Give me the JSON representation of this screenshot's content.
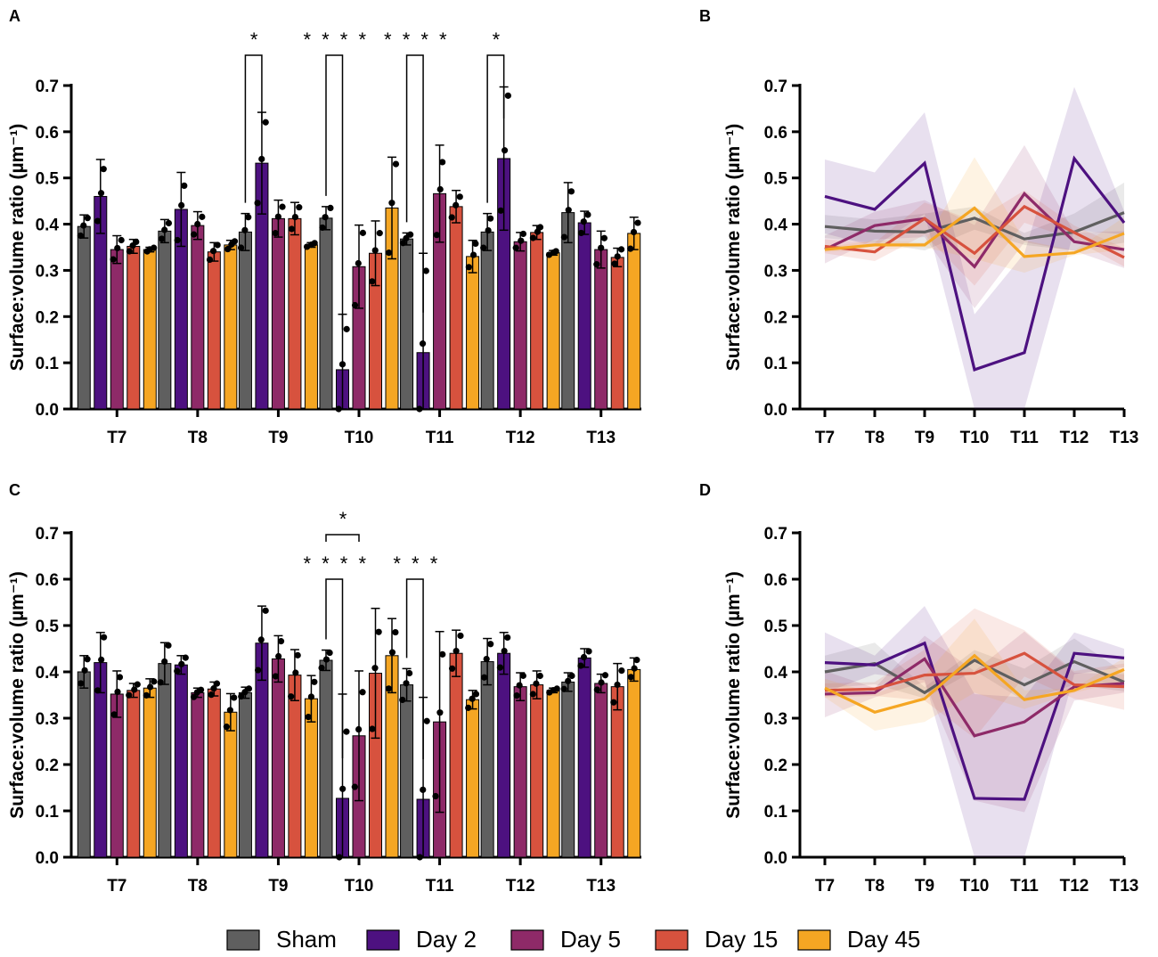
{
  "colors": {
    "Sham": "#5f5f5f",
    "Day 2": "#4d1180",
    "Day 5": "#8e2a68",
    "Day 15": "#d7523e",
    "Day 45": "#f5a623"
  },
  "legend": [
    "Sham",
    "Day 2",
    "Day 5",
    "Day 15",
    "Day 45"
  ],
  "chart_data": [
    {
      "panel": "A",
      "type": "bar",
      "ylabel": "Surface:volume ratio (µm⁻¹)",
      "ylim": [
        0,
        0.7
      ],
      "yticks": [
        "0.0",
        "0.1",
        "0.2",
        "0.3",
        "0.4",
        "0.5",
        "0.6",
        "0.7"
      ],
      "categories": [
        "T7",
        "T8",
        "T9",
        "T10",
        "T11",
        "T12",
        "T13"
      ],
      "series": [
        {
          "name": "Sham",
          "values": [
            0.395,
            0.385,
            0.383,
            0.413,
            0.368,
            0.383,
            0.425
          ],
          "errors": [
            0.025,
            0.025,
            0.04,
            0.025,
            0.013,
            0.04,
            0.065
          ]
        },
        {
          "name": "Day 2",
          "values": [
            0.46,
            0.432,
            0.532,
            0.085,
            0.122,
            0.542,
            0.403
          ],
          "errors": [
            0.08,
            0.08,
            0.11,
            0.12,
            0.215,
            0.155,
            0.025
          ]
        },
        {
          "name": "Day 5",
          "values": [
            0.345,
            0.397,
            0.412,
            0.308,
            0.466,
            0.362,
            0.345
          ],
          "errors": [
            0.03,
            0.03,
            0.04,
            0.09,
            0.105,
            0.02,
            0.04
          ]
        },
        {
          "name": "Day 15",
          "values": [
            0.352,
            0.34,
            0.412,
            0.337,
            0.438,
            0.382,
            0.328
          ],
          "errors": [
            0.015,
            0.02,
            0.035,
            0.07,
            0.035,
            0.015,
            0.02
          ]
        },
        {
          "name": "Day 45",
          "values": [
            0.345,
            0.355,
            0.355,
            0.435,
            0.33,
            0.338,
            0.38
          ],
          "errors": [
            0.005,
            0.01,
            0.005,
            0.11,
            0.035,
            0.005,
            0.035
          ]
        }
      ],
      "significance": [
        {
          "label": "*",
          "category": "T9",
          "from": "Sham",
          "to": "Day 2"
        },
        {
          "label": "****",
          "category": "T10",
          "from": "Sham",
          "to": "Day 2"
        },
        {
          "label": "****",
          "category": "T11",
          "from": "Sham",
          "to": "Day 2"
        },
        {
          "label": "*",
          "category": "T12",
          "from": "Sham",
          "to": "Day 2"
        }
      ]
    },
    {
      "panel": "B",
      "type": "line",
      "ylabel": "Surface:volume ratio (µm⁻¹)",
      "ylim": [
        0,
        0.7
      ],
      "yticks": [
        "0.0",
        "0.1",
        "0.2",
        "0.3",
        "0.4",
        "0.5",
        "0.6",
        "0.7"
      ],
      "categories": [
        "T7",
        "T8",
        "T9",
        "T10",
        "T11",
        "T12",
        "T13"
      ],
      "series": [
        {
          "name": "Sham",
          "values": [
            0.395,
            0.385,
            0.383,
            0.413,
            0.368,
            0.383,
            0.425
          ],
          "errors": [
            0.025,
            0.025,
            0.04,
            0.025,
            0.013,
            0.04,
            0.065
          ]
        },
        {
          "name": "Day 2",
          "values": [
            0.46,
            0.432,
            0.532,
            0.085,
            0.122,
            0.542,
            0.403
          ],
          "errors": [
            0.08,
            0.08,
            0.11,
            0.12,
            0.215,
            0.155,
            0.025
          ]
        },
        {
          "name": "Day 5",
          "values": [
            0.345,
            0.397,
            0.412,
            0.308,
            0.466,
            0.362,
            0.345
          ],
          "errors": [
            0.03,
            0.03,
            0.04,
            0.09,
            0.105,
            0.02,
            0.04
          ]
        },
        {
          "name": "Day 15",
          "values": [
            0.352,
            0.34,
            0.412,
            0.337,
            0.438,
            0.382,
            0.328
          ],
          "errors": [
            0.015,
            0.02,
            0.035,
            0.07,
            0.035,
            0.015,
            0.02
          ]
        },
        {
          "name": "Day 45",
          "values": [
            0.345,
            0.355,
            0.355,
            0.435,
            0.33,
            0.338,
            0.38
          ],
          "errors": [
            0.005,
            0.01,
            0.005,
            0.11,
            0.035,
            0.005,
            0.035
          ]
        }
      ]
    },
    {
      "panel": "C",
      "type": "bar",
      "ylabel": "Surface:volume ratio (µm⁻¹)",
      "ylim": [
        0,
        0.7
      ],
      "yticks": [
        "0.0",
        "0.1",
        "0.2",
        "0.3",
        "0.4",
        "0.5",
        "0.6",
        "0.7"
      ],
      "categories": [
        "T7",
        "T8",
        "T9",
        "T10",
        "T11",
        "T12",
        "T13"
      ],
      "series": [
        {
          "name": "Sham",
          "values": [
            0.4,
            0.418,
            0.355,
            0.425,
            0.372,
            0.422,
            0.378
          ],
          "errors": [
            0.035,
            0.045,
            0.012,
            0.022,
            0.035,
            0.05,
            0.02
          ]
        },
        {
          "name": "Day 2",
          "values": [
            0.42,
            0.415,
            0.462,
            0.127,
            0.125,
            0.44,
            0.43
          ],
          "errors": [
            0.065,
            0.02,
            0.08,
            0.225,
            0.22,
            0.045,
            0.02
          ]
        },
        {
          "name": "Day 5",
          "values": [
            0.352,
            0.355,
            0.428,
            0.262,
            0.292,
            0.368,
            0.375
          ],
          "errors": [
            0.05,
            0.01,
            0.05,
            0.14,
            0.195,
            0.03,
            0.02
          ]
        },
        {
          "name": "Day 15",
          "values": [
            0.36,
            0.363,
            0.393,
            0.397,
            0.44,
            0.372,
            0.368
          ],
          "errors": [
            0.015,
            0.015,
            0.055,
            0.14,
            0.05,
            0.03,
            0.05
          ]
        },
        {
          "name": "Day 45",
          "values": [
            0.365,
            0.313,
            0.342,
            0.435,
            0.34,
            0.36,
            0.405
          ],
          "errors": [
            0.02,
            0.04,
            0.05,
            0.08,
            0.02,
            0.005,
            0.025
          ]
        }
      ],
      "significance": [
        {
          "label": "*",
          "category": "T10",
          "from": "Sham",
          "to": "Day 5"
        },
        {
          "label": "****",
          "category": "T10",
          "from": "Sham",
          "to": "Day 2"
        },
        {
          "label": "***",
          "category": "T11",
          "from": "Sham",
          "to": "Day 2"
        }
      ]
    },
    {
      "panel": "D",
      "type": "line",
      "ylabel": "Surface:volume ratio (µm⁻¹)",
      "ylim": [
        0,
        0.7
      ],
      "yticks": [
        "0.0",
        "0.1",
        "0.2",
        "0.3",
        "0.4",
        "0.5",
        "0.6",
        "0.7"
      ],
      "categories": [
        "T7",
        "T8",
        "T9",
        "T10",
        "T11",
        "T12",
        "T13"
      ],
      "series": [
        {
          "name": "Sham",
          "values": [
            0.4,
            0.418,
            0.355,
            0.425,
            0.372,
            0.422,
            0.378
          ],
          "errors": [
            0.035,
            0.045,
            0.012,
            0.022,
            0.035,
            0.05,
            0.02
          ]
        },
        {
          "name": "Day 2",
          "values": [
            0.42,
            0.415,
            0.462,
            0.127,
            0.125,
            0.44,
            0.43
          ],
          "errors": [
            0.065,
            0.02,
            0.08,
            0.225,
            0.22,
            0.045,
            0.02
          ]
        },
        {
          "name": "Day 5",
          "values": [
            0.352,
            0.355,
            0.428,
            0.262,
            0.292,
            0.368,
            0.375
          ],
          "errors": [
            0.05,
            0.01,
            0.05,
            0.14,
            0.195,
            0.03,
            0.02
          ]
        },
        {
          "name": "Day 15",
          "values": [
            0.36,
            0.363,
            0.393,
            0.397,
            0.44,
            0.372,
            0.368
          ],
          "errors": [
            0.015,
            0.015,
            0.055,
            0.14,
            0.05,
            0.03,
            0.05
          ]
        },
        {
          "name": "Day 45",
          "values": [
            0.365,
            0.313,
            0.342,
            0.435,
            0.34,
            0.36,
            0.405
          ],
          "errors": [
            0.02,
            0.04,
            0.05,
            0.08,
            0.02,
            0.005,
            0.025
          ]
        }
      ]
    }
  ]
}
